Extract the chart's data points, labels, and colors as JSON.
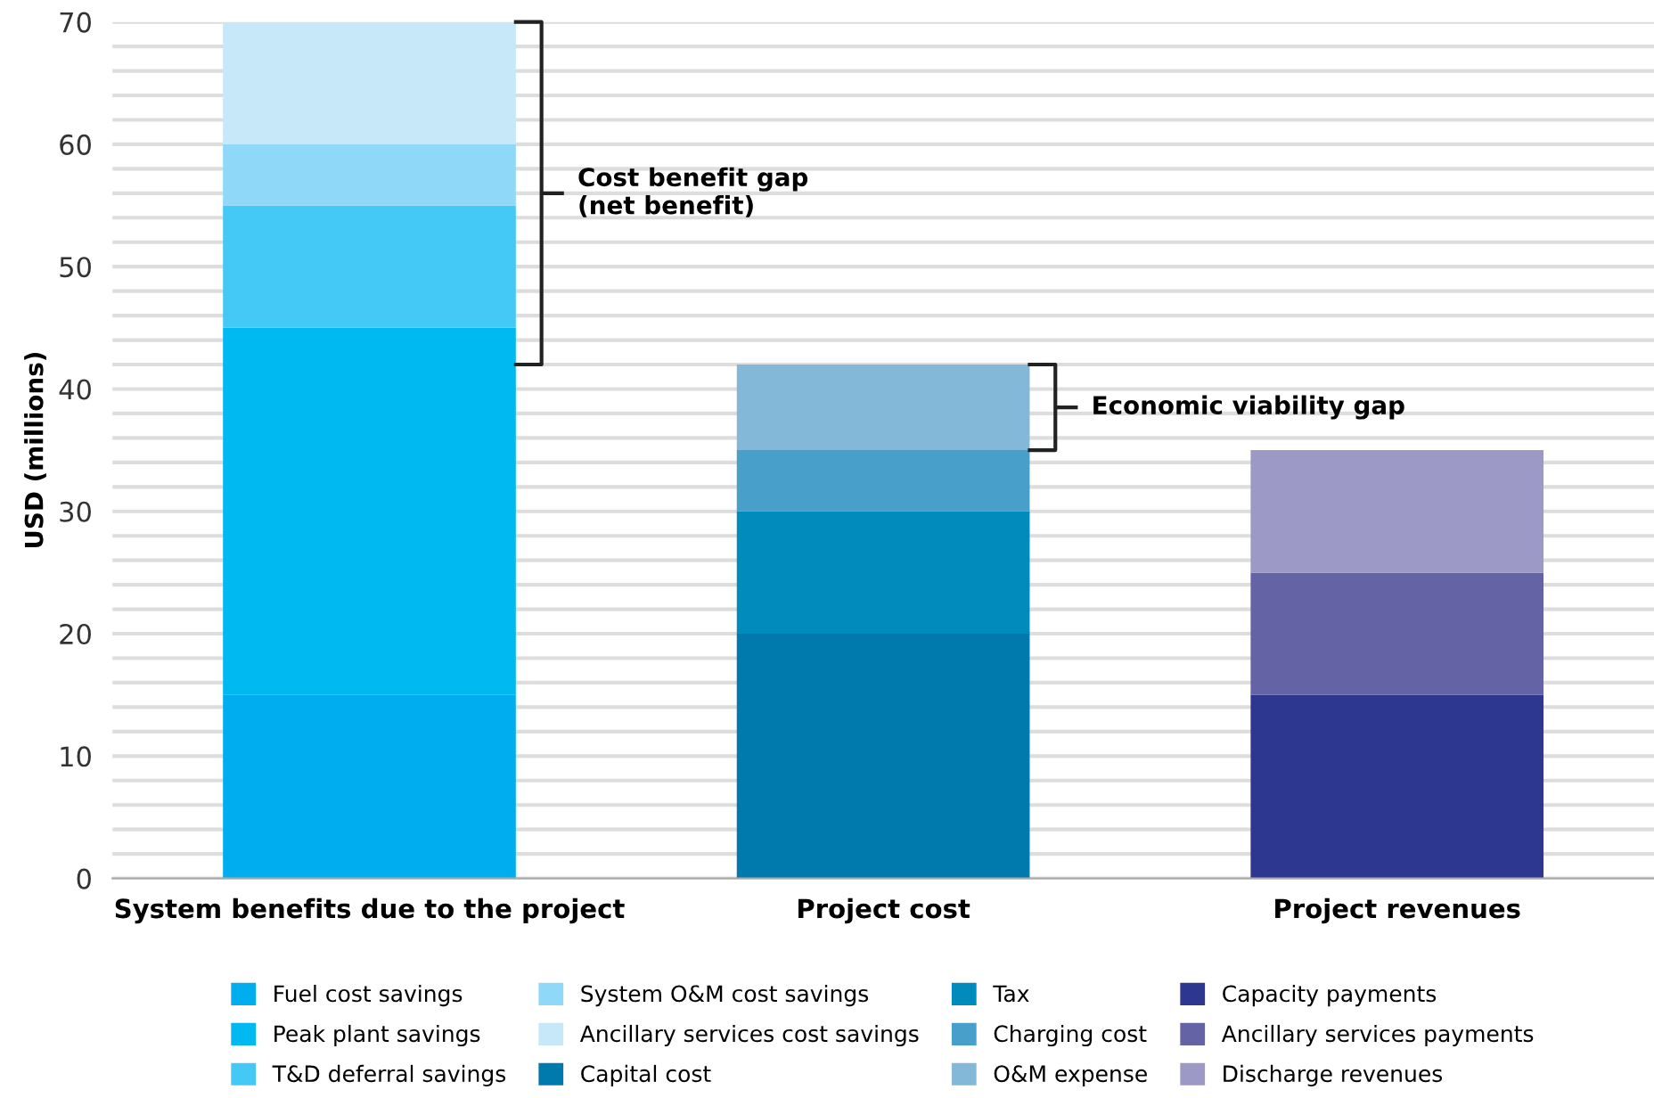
{
  "chart_data": {
    "type": "bar",
    "stacked": true,
    "ylabel": "USD (millions)",
    "categories": [
      "System benefits due to the project",
      "Project cost",
      "Project revenues"
    ],
    "series": [
      {
        "name": "Fuel cost savings",
        "color": "#00aeef",
        "values": [
          15,
          null,
          null
        ]
      },
      {
        "name": "Peak plant savings",
        "color": "#00b9f1",
        "values": [
          30,
          null,
          null
        ]
      },
      {
        "name": "T&D deferral savings",
        "color": "#44c8f5",
        "values": [
          10,
          null,
          null
        ]
      },
      {
        "name": "System O&M cost savings",
        "color": "#8fd8f7",
        "values": [
          5,
          null,
          null
        ]
      },
      {
        "name": "Ancillary services cost savings",
        "color": "#c6e8f8",
        "values": [
          10,
          null,
          null
        ]
      },
      {
        "name": "Capital cost",
        "color": "#0079ad",
        "values": [
          null,
          20,
          null
        ]
      },
      {
        "name": "Tax",
        "color": "#008bbd",
        "values": [
          null,
          10,
          null
        ]
      },
      {
        "name": "Charging cost",
        "color": "#479fca",
        "values": [
          null,
          5,
          null
        ]
      },
      {
        "name": "O&M expense",
        "color": "#84b8d8",
        "values": [
          null,
          7,
          null
        ]
      },
      {
        "name": "Capacity payments",
        "color": "#2e3790",
        "values": [
          null,
          null,
          15
        ]
      },
      {
        "name": "Ancillary services payments",
        "color": "#6363a6",
        "values": [
          null,
          null,
          10
        ]
      },
      {
        "name": "Discharge revenues",
        "color": "#9c99c7",
        "values": [
          null,
          null,
          10
        ]
      }
    ],
    "ylim": [
      0,
      70
    ],
    "yticks": [
      0,
      {
        "value": 2,
        "label": null
      },
      {
        "value": 4,
        "label": null
      },
      {
        "value": 6,
        "label": null
      },
      {
        "value": 8,
        "label": null
      },
      10,
      {
        "value": 12,
        "label": null
      },
      {
        "value": 14,
        "label": null
      },
      {
        "value": 16,
        "label": null
      },
      {
        "value": 18,
        "label": null
      },
      20,
      {
        "value": 22,
        "label": null
      },
      {
        "value": 24,
        "label": null
      },
      {
        "value": 26,
        "label": null
      },
      {
        "value": 28,
        "label": null
      },
      30,
      {
        "value": 32,
        "label": null
      },
      {
        "value": 34,
        "label": null
      },
      {
        "value": 36,
        "label": null
      },
      {
        "value": 38,
        "label": null
      },
      40,
      {
        "value": 42,
        "label": null
      },
      {
        "value": 44,
        "label": null
      },
      {
        "value": 46,
        "label": null
      },
      {
        "value": 48,
        "label": null
      },
      50,
      {
        "value": 52,
        "label": null
      },
      {
        "value": 54,
        "label": null
      },
      {
        "value": 56,
        "label": null
      },
      {
        "value": 58,
        "label": null
      },
      60,
      {
        "value": 62,
        "label": null
      },
      {
        "value": 64,
        "label": null
      },
      {
        "value": 66,
        "label": null
      },
      {
        "value": 68,
        "label": null
      },
      70
    ],
    "grid": "y",
    "legend": "bottom",
    "annotations": [
      "Cost benefit gap\n(net benefit)",
      "Economic viability gap"
    ]
  }
}
